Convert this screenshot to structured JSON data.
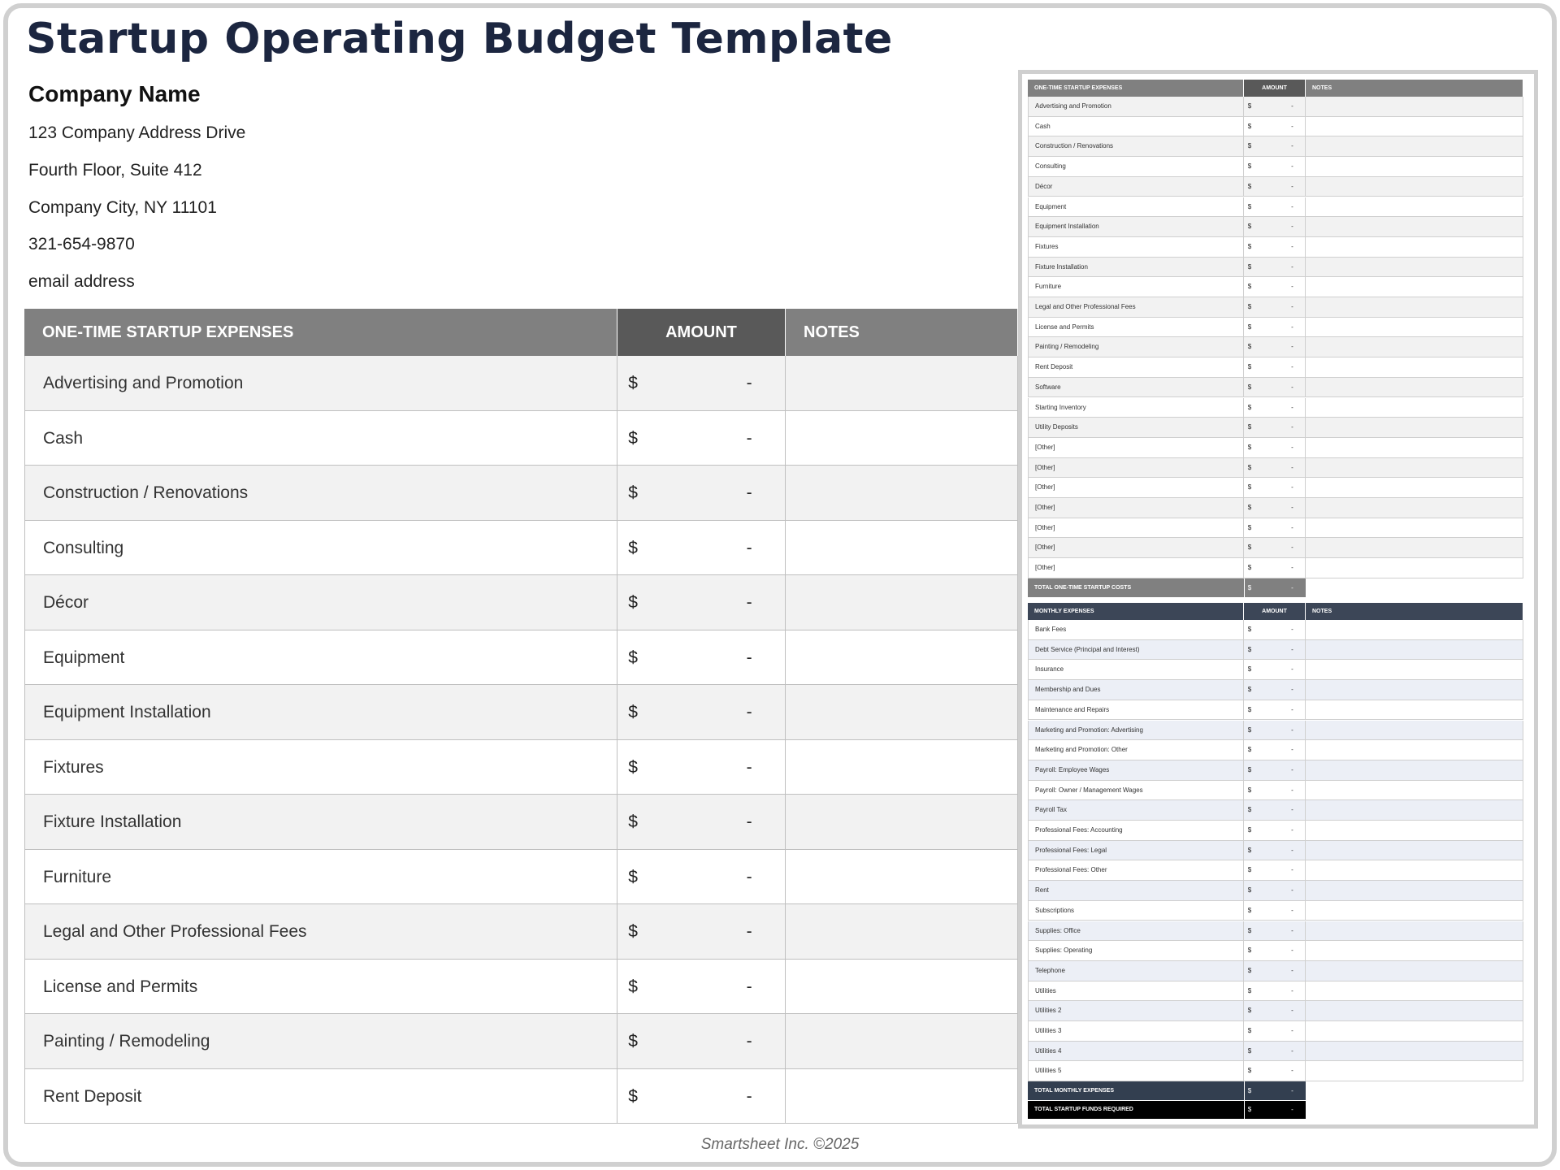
{
  "header": {
    "title": "Startup Operating Budget Template"
  },
  "company": {
    "name": "Company Name",
    "lines": [
      "123 Company Address Drive",
      "Fourth Floor, Suite 412",
      "Company City, NY  11101",
      "321-654-9870",
      "email address"
    ]
  },
  "table": {
    "columns": [
      "ONE-TIME STARTUP EXPENSES",
      "AMOUNT",
      "NOTES"
    ],
    "rows": [
      [
        "Advertising and Promotion",
        "$",
        "-"
      ],
      [
        "Cash",
        "$",
        "-"
      ],
      [
        "Construction / Renovations",
        "$",
        "-"
      ],
      [
        "Consulting",
        "$",
        "-"
      ],
      [
        "Décor",
        "$",
        "-"
      ],
      [
        "Equipment",
        "$",
        "-"
      ],
      [
        "Equipment Installation",
        "$",
        "-"
      ],
      [
        "Fixtures",
        "$",
        "-"
      ],
      [
        "Fixture Installation",
        "$",
        "-"
      ],
      [
        "Furniture",
        "$",
        "-"
      ],
      [
        "Legal and Other Professional Fees",
        "$",
        "-"
      ],
      [
        "License and Permits",
        "$",
        "-"
      ],
      [
        "Painting / Remodeling",
        "$",
        "-"
      ],
      [
        "Rent Deposit",
        "$",
        "-"
      ]
    ]
  },
  "preview": {
    "one_time": {
      "columns": [
        "ONE-TIME STARTUP EXPENSES",
        "AMOUNT",
        "NOTES"
      ],
      "rows": [
        [
          "Advertising and Promotion",
          "$",
          "-"
        ],
        [
          "Cash",
          "$",
          "-"
        ],
        [
          "Construction / Renovations",
          "$",
          "-"
        ],
        [
          "Consulting",
          "$",
          "-"
        ],
        [
          "Décor",
          "$",
          "-"
        ],
        [
          "Equipment",
          "$",
          "-"
        ],
        [
          "Equipment Installation",
          "$",
          "-"
        ],
        [
          "Fixtures",
          "$",
          "-"
        ],
        [
          "Fixture Installation",
          "$",
          "-"
        ],
        [
          "Furniture",
          "$",
          "-"
        ],
        [
          "Legal and Other Professional Fees",
          "$",
          "-"
        ],
        [
          "License and Permits",
          "$",
          "-"
        ],
        [
          "Painting / Remodeling",
          "$",
          "-"
        ],
        [
          "Rent Deposit",
          "$",
          "-"
        ],
        [
          "Software",
          "$",
          "-"
        ],
        [
          "Starting Inventory",
          "$",
          "-"
        ],
        [
          "Utility Deposits",
          "$",
          "-"
        ],
        [
          "[Other]",
          "$",
          "-"
        ],
        [
          "[Other]",
          "$",
          "-"
        ],
        [
          "[Other]",
          "$",
          "-"
        ],
        [
          "[Other]",
          "$",
          "-"
        ],
        [
          "[Other]",
          "$",
          "-"
        ],
        [
          "[Other]",
          "$",
          "-"
        ],
        [
          "[Other]",
          "$",
          "-"
        ]
      ],
      "total": [
        "TOTAL ONE-TIME STARTUP COSTS",
        "$",
        "-"
      ]
    },
    "monthly": {
      "columns": [
        "MONTHLY EXPENSES",
        "AMOUNT",
        "NOTES"
      ],
      "rows": [
        [
          "Bank Fees",
          "$",
          "-"
        ],
        [
          "Debt Service (Principal and Interest)",
          "$",
          "-"
        ],
        [
          "Insurance",
          "$",
          "-"
        ],
        [
          "Membership and Dues",
          "$",
          "-"
        ],
        [
          "Maintenance and Repairs",
          "$",
          "-"
        ],
        [
          "Marketing and Promotion: Advertising",
          "$",
          "-"
        ],
        [
          "Marketing and Promotion: Other",
          "$",
          "-"
        ],
        [
          "Payroll: Employee Wages",
          "$",
          "-"
        ],
        [
          "Payroll: Owner / Management Wages",
          "$",
          "-"
        ],
        [
          "Payroll Tax",
          "$",
          "-"
        ],
        [
          "Professional Fees: Accounting",
          "$",
          "-"
        ],
        [
          "Professional Fees: Legal",
          "$",
          "-"
        ],
        [
          "Professional Fees: Other",
          "$",
          "-"
        ],
        [
          "Rent",
          "$",
          "-"
        ],
        [
          "Subscriptions",
          "$",
          "-"
        ],
        [
          "Supplies: Office",
          "$",
          "-"
        ],
        [
          "Supplies: Operating",
          "$",
          "-"
        ],
        [
          "Telephone",
          "$",
          "-"
        ],
        [
          "Utilities",
          "$",
          "-"
        ],
        [
          "Utilities 2",
          "$",
          "-"
        ],
        [
          "Utilities 3",
          "$",
          "-"
        ],
        [
          "Utilities 4",
          "$",
          "-"
        ],
        [
          "Utilities 5",
          "$",
          "-"
        ]
      ],
      "total": [
        "TOTAL MONTHLY EXPENSES",
        "$",
        "-"
      ]
    },
    "grand_total": [
      "TOTAL STARTUP FUNDS REQUIRED",
      "$",
      "-"
    ]
  },
  "footer": {
    "text": "Smartsheet Inc. ©2025"
  }
}
